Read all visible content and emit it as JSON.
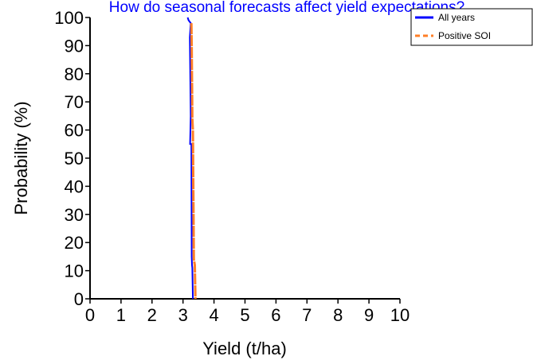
{
  "chart_data": {
    "type": "line",
    "title": "How do seasonal forecasts affect yield expectations?",
    "xlabel": "Yield (t/ha)",
    "ylabel": "Probability (%)",
    "xlim": [
      0,
      10
    ],
    "ylim": [
      0,
      100
    ],
    "x_ticks": [
      "0",
      "1",
      "2",
      "3",
      "4",
      "5",
      "6",
      "7",
      "8",
      "9",
      "10"
    ],
    "y_ticks": [
      "0",
      "10",
      "20",
      "30",
      "40",
      "50",
      "60",
      "70",
      "80",
      "90",
      "100"
    ],
    "grid": false,
    "legend_position": "top-right",
    "series": [
      {
        "name": "All years",
        "color": "#0000ff",
        "style": "solid",
        "x": [
          3.15,
          3.18,
          3.25,
          3.22,
          3.25,
          3.23,
          3.27,
          3.28,
          3.29,
          3.3,
          3.32
        ],
        "y": [
          100,
          99,
          98,
          93,
          65,
          55,
          55,
          15,
          12,
          11,
          0
        ]
      },
      {
        "name": "Positive SOI",
        "color": "#ff7f27",
        "style": "dashed",
        "x": [
          3.27,
          3.28,
          3.3,
          3.32,
          3.35,
          3.38,
          3.4
        ],
        "y": [
          98,
          90,
          64,
          60,
          14,
          12,
          0
        ]
      }
    ]
  }
}
